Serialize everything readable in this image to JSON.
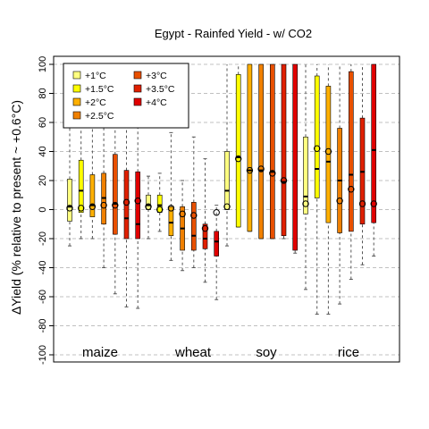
{
  "chart_data": {
    "type": "box",
    "title": "Egypt - Rainfed Yield - w/ CO2",
    "ylabel": "ΔYield (% relative to present ~ +0.6°C)",
    "ylim": [
      -100,
      100
    ],
    "yticks": [
      -100,
      -80,
      -60,
      -40,
      -20,
      0,
      20,
      40,
      60,
      80,
      100
    ],
    "grid": "horizontal dashed",
    "legend_position": "top-left",
    "legend": [
      {
        "label": "+1°C",
        "color": "#FFFF80"
      },
      {
        "label": "+1.5°C",
        "color": "#FFFF00"
      },
      {
        "label": "+2°C",
        "color": "#FFB000"
      },
      {
        "label": "+2.5°C",
        "color": "#F08000"
      },
      {
        "label": "+3°C",
        "color": "#E85000"
      },
      {
        "label": "+3.5°C",
        "color": "#E02000"
      },
      {
        "label": "+4°C",
        "color": "#E00000"
      }
    ],
    "crops": [
      {
        "name": "maize",
        "boxes": [
          {
            "wlo": -25,
            "q1": -8,
            "median": 2,
            "q3": 21,
            "whi": 100,
            "mean": 1
          },
          {
            "wlo": -20,
            "q1": -2,
            "median": 13,
            "q3": 34,
            "whi": 100,
            "mean": 1
          },
          {
            "wlo": -20,
            "q1": -5,
            "median": 3,
            "q3": 24,
            "whi": 100,
            "mean": 2
          },
          {
            "wlo": -40,
            "q1": -10,
            "median": 8,
            "q3": 25,
            "whi": 100,
            "mean": 3
          },
          {
            "wlo": -58,
            "q1": -17,
            "median": 4,
            "q3": 38,
            "whi": 100,
            "mean": 3
          },
          {
            "wlo": -67,
            "q1": -20,
            "median": -6,
            "q3": 27,
            "whi": 100,
            "mean": 5
          },
          {
            "wlo": -68,
            "q1": -20,
            "median": -10,
            "q3": 26,
            "whi": 100,
            "mean": 6
          }
        ]
      },
      {
        "name": "wheat",
        "boxes": [
          {
            "wlo": -20,
            "q1": 0,
            "median": 3,
            "q3": 10,
            "whi": 23,
            "mean": 2
          },
          {
            "wlo": -15,
            "q1": -2,
            "median": 3,
            "q3": 10,
            "whi": 25,
            "mean": 0
          },
          {
            "wlo": -35,
            "q1": -18,
            "median": -9,
            "q3": 2,
            "whi": 53,
            "mean": 1
          },
          {
            "wlo": -42,
            "q1": -28,
            "median": -13,
            "q3": 2,
            "whi": 20,
            "mean": -3
          },
          {
            "wlo": -40,
            "q1": -28,
            "median": -18,
            "q3": 5,
            "whi": 50,
            "mean": -4
          },
          {
            "wlo": -50,
            "q1": -27,
            "median": -20,
            "q3": -10,
            "whi": 35,
            "mean": -13
          },
          {
            "wlo": -62,
            "q1": -32,
            "median": -22,
            "q3": -15,
            "whi": 3,
            "mean": -2
          }
        ]
      },
      {
        "name": "soy",
        "boxes": [
          {
            "wlo": -25,
            "q1": 0,
            "median": 13,
            "q3": 40,
            "whi": 100,
            "mean": 2
          },
          {
            "wlo": -12,
            "q1": -12,
            "median": 36,
            "q3": 93,
            "whi": 100,
            "mean": 35
          },
          {
            "wlo": -15,
            "q1": -15,
            "median": 27,
            "q3": 100,
            "whi": 100,
            "mean": 27
          },
          {
            "wlo": -20,
            "q1": -20,
            "median": 27,
            "q3": 100,
            "whi": 100,
            "mean": 28
          },
          {
            "wlo": -20,
            "q1": -20,
            "median": 26,
            "q3": 100,
            "whi": 100,
            "mean": 25
          },
          {
            "wlo": -20,
            "q1": -18,
            "median": 19,
            "q3": 100,
            "whi": 100,
            "mean": 20
          },
          {
            "wlo": -30,
            "q1": -28,
            "median": 100,
            "q3": 100,
            "whi": 100,
            "mean": 100
          }
        ]
      },
      {
        "name": "rice",
        "boxes": [
          {
            "wlo": -55,
            "q1": -3,
            "median": 9,
            "q3": 50,
            "whi": 100,
            "mean": 4
          },
          {
            "wlo": -72,
            "q1": 8,
            "median": 28,
            "q3": 92,
            "whi": 100,
            "mean": 42
          },
          {
            "wlo": -72,
            "q1": -9,
            "median": 33,
            "q3": 85,
            "whi": 100,
            "mean": 40
          },
          {
            "wlo": -65,
            "q1": -16,
            "median": 20,
            "q3": 56,
            "whi": 100,
            "mean": 6
          },
          {
            "wlo": -48,
            "q1": -15,
            "median": 24,
            "q3": 95,
            "whi": 100,
            "mean": 14
          },
          {
            "wlo": -38,
            "q1": -10,
            "median": 26,
            "q3": 63,
            "whi": 100,
            "mean": 4
          },
          {
            "wlo": -32,
            "q1": -9,
            "median": 41,
            "q3": 100,
            "whi": 100,
            "mean": 4
          }
        ]
      }
    ]
  }
}
